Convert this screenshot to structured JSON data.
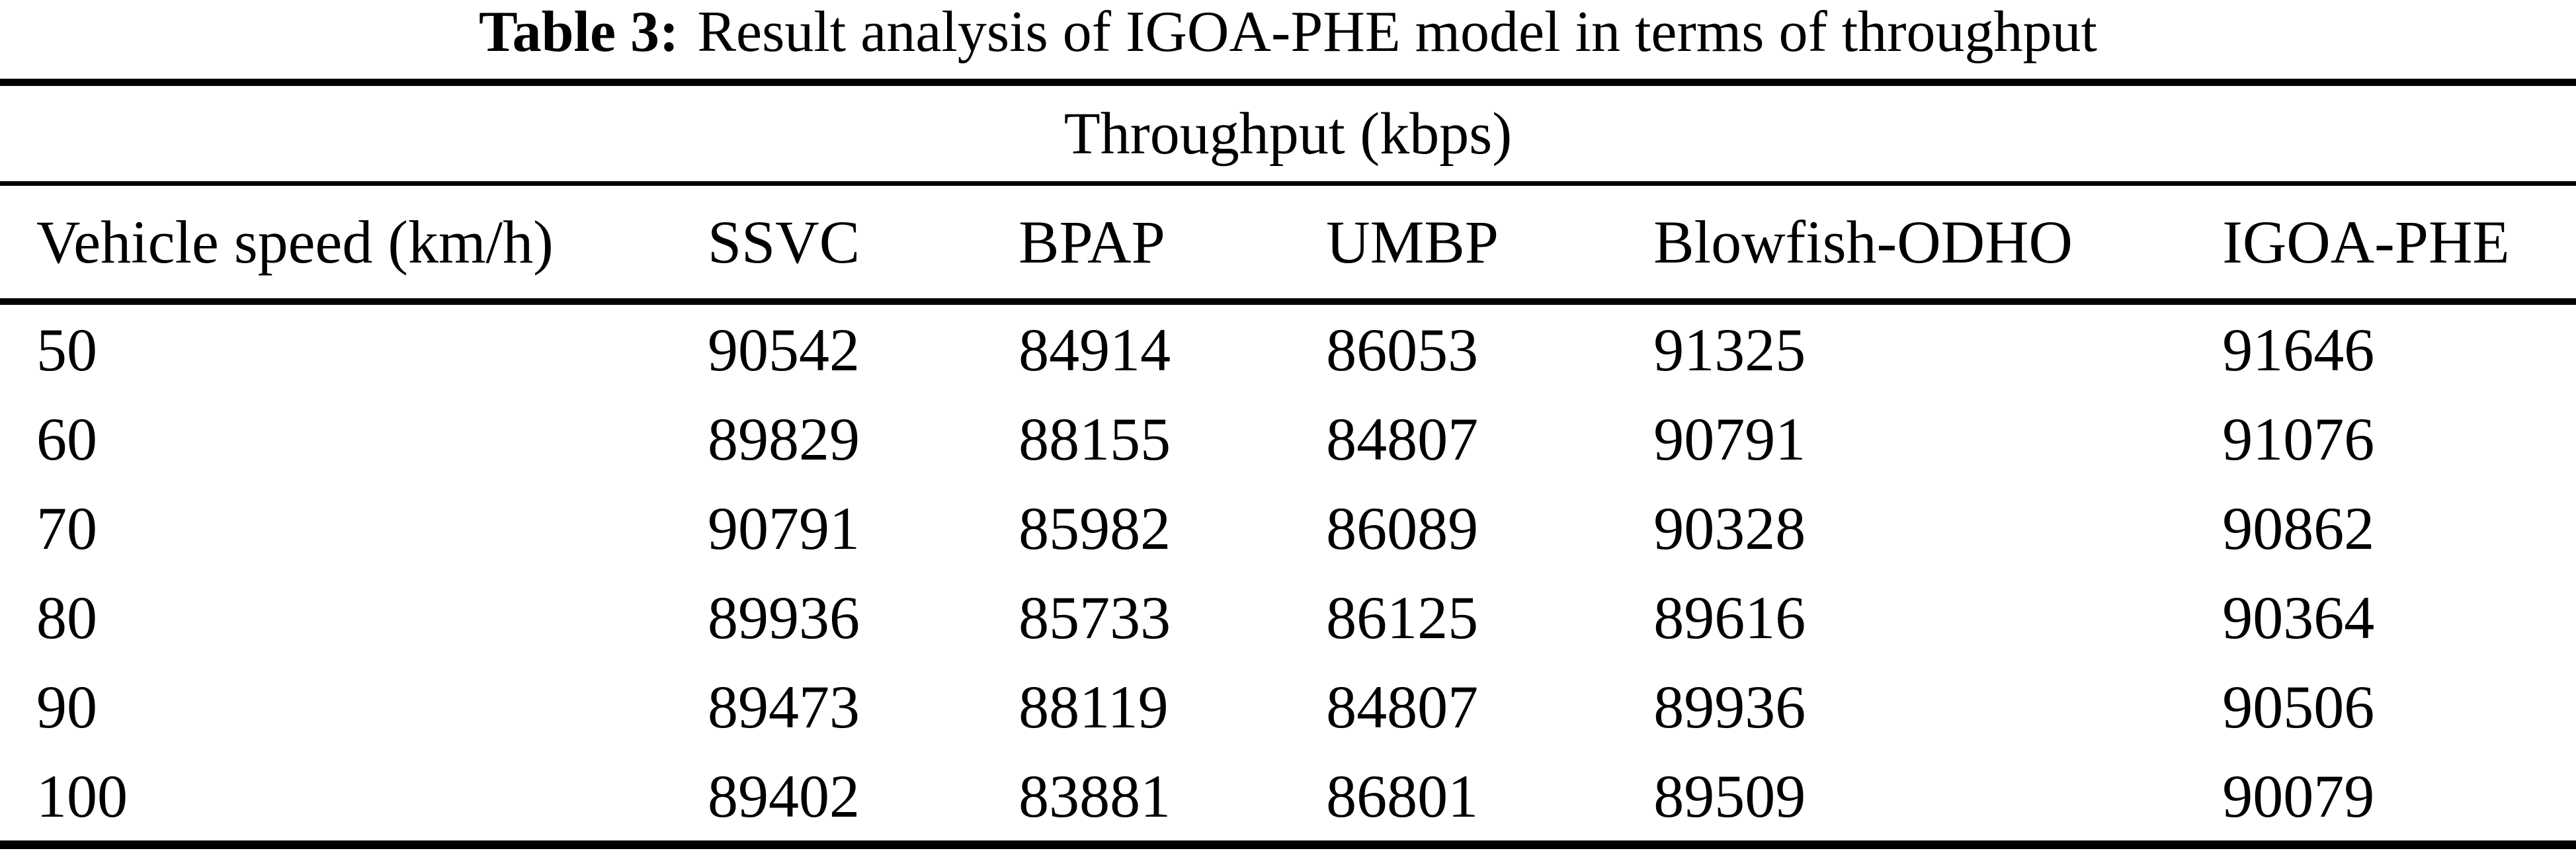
{
  "title": {
    "label": "Table 3:",
    "text": "Result analysis of IGOA-PHE model in terms of throughput"
  },
  "table": {
    "group_header": "Throughput (kbps)",
    "columns": [
      "Vehicle speed (km/h)",
      "SSVC",
      "BPAP",
      "UMBP",
      "Blowfish-ODHO",
      "IGOA-PHE"
    ],
    "rows": [
      [
        "50",
        "90542",
        "84914",
        "86053",
        "91325",
        "91646"
      ],
      [
        "60",
        "89829",
        "88155",
        "84807",
        "90791",
        "91076"
      ],
      [
        "70",
        "90791",
        "85982",
        "86089",
        "90328",
        "90862"
      ],
      [
        "80",
        "89936",
        "85733",
        "86125",
        "89616",
        "90364"
      ],
      [
        "90",
        "89473",
        "88119",
        "84807",
        "89936",
        "90506"
      ],
      [
        "100",
        "89402",
        "83881",
        "86801",
        "89509",
        "90079"
      ]
    ]
  },
  "colors": {
    "text": "#000000",
    "background": "#ffffff",
    "rule": "#000000"
  }
}
